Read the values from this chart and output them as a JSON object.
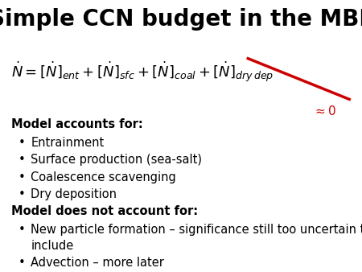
{
  "title": "Simple CCN budget in the MBL",
  "title_fontsize": 20,
  "title_fontweight": "bold",
  "bg_color": "#ffffff",
  "approx_zero_color": "#cc0000",
  "text_color": "#000000",
  "text_fontsize": 10.5,
  "bullet_accounts": [
    "Entrainment",
    "Surface production (sea-salt)",
    "Coalescence scavenging",
    "Dry deposition"
  ],
  "bullet_not_account_line1": "New particle formation – significance still too uncertain to",
  "bullet_not_account_line2": "include",
  "bullet_not_account2": "Advection – more later",
  "bullet_char": "•"
}
